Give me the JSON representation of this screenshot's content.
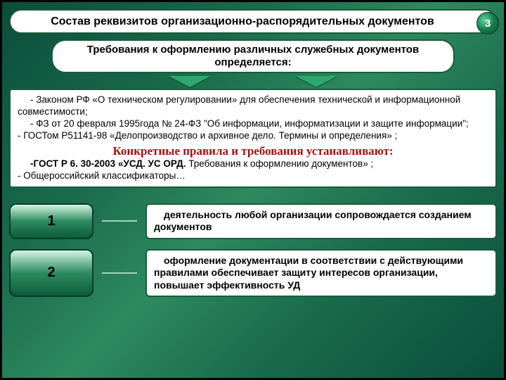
{
  "page_number": "3",
  "title": "Состав реквизитов организационно-распорядительных документов",
  "subtitle": "Требования к оформлению различных служебных документов определяется:",
  "content": {
    "line1": "- Законом РФ «О техническом регулировании» для обеспечения технической и информационной совместимости;",
    "line2": "- ФЗ от 20 февраля 1995года № 24-ФЗ \"Об информации, информатизации и защите информации\";",
    "line3": "-   ГОСТом Р51141-98 «Делопроизводство и архивное дело. Термины и определения» ;",
    "red": "Конкретные правила и требования устанавливают:",
    "line4_a": "-ГОСТ Р 6. 30-2003 «УСД. УС ОРД. ",
    "line4_b": "Требования к оформлению документов» ;",
    "line5": "-   Общероссийский классификаторы…"
  },
  "notes": [
    {
      "num": "1",
      "text": "деятельность любой организации сопровождается созданием документов"
    },
    {
      "num": "2",
      "text": "оформление документации в соответствии с действующими правилами обеспечивает защиту интересов организации, повышает эффективность УД"
    }
  ],
  "colors": {
    "bg_dark": "#0a4d3a",
    "bg_mid": "#2d8a5f",
    "border": "#1a5c3a",
    "red": "#a01010"
  }
}
